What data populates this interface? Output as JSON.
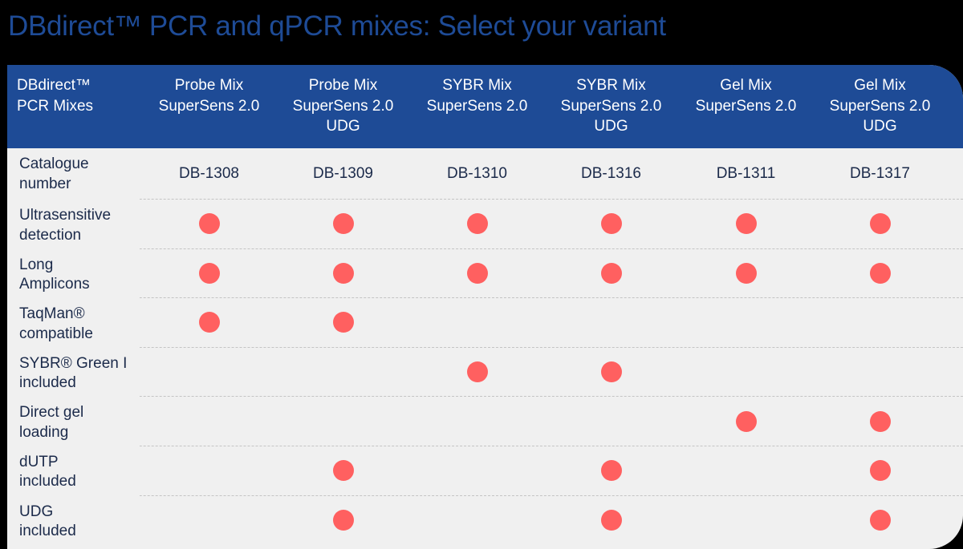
{
  "page": {
    "title": "DBdirect™ PCR and qPCR mixes: Select your variant"
  },
  "colors": {
    "header_bg": "#1E4B96",
    "title_text": "#1E4B96",
    "table_bg": "#F0F0F0",
    "dot": "#FF6060",
    "page_bg": "#000000",
    "body_text": "#1B2A4A"
  },
  "table": {
    "corner_header": "DBdirect™\nPCR Mixes",
    "columns": [
      {
        "label": "Probe Mix\nSuperSens 2.0",
        "catalogue": "DB-1308"
      },
      {
        "label": "Probe Mix\nSuperSens 2.0\nUDG",
        "catalogue": "DB-1309"
      },
      {
        "label": "SYBR Mix\nSuperSens 2.0",
        "catalogue": "DB-1310"
      },
      {
        "label": "SYBR Mix\nSuperSens 2.0\nUDG",
        "catalogue": "DB-1316"
      },
      {
        "label": "Gel Mix\nSuperSens 2.0",
        "catalogue": "DB-1311"
      },
      {
        "label": "Gel Mix\nSuperSens 2.0\nUDG",
        "catalogue": "DB-1317"
      }
    ],
    "catalogue_row_label": "Catalogue\nnumber",
    "feature_rows": [
      {
        "label": "Ultrasensitive\ndetection",
        "values": [
          true,
          true,
          true,
          true,
          true,
          true
        ]
      },
      {
        "label": "Long\nAmplicons",
        "values": [
          true,
          true,
          true,
          true,
          true,
          true
        ]
      },
      {
        "label": "TaqMan®\ncompatible",
        "values": [
          true,
          true,
          false,
          false,
          false,
          false
        ]
      },
      {
        "label": "SYBR® Green I\nincluded",
        "values": [
          false,
          false,
          true,
          true,
          false,
          false
        ]
      },
      {
        "label": "Direct gel\nloading",
        "values": [
          false,
          false,
          false,
          false,
          true,
          true
        ]
      },
      {
        "label": "dUTP\nincluded",
        "values": [
          false,
          true,
          false,
          true,
          false,
          true
        ]
      },
      {
        "label": "UDG\nincluded",
        "values": [
          false,
          true,
          false,
          true,
          false,
          true
        ]
      }
    ]
  }
}
